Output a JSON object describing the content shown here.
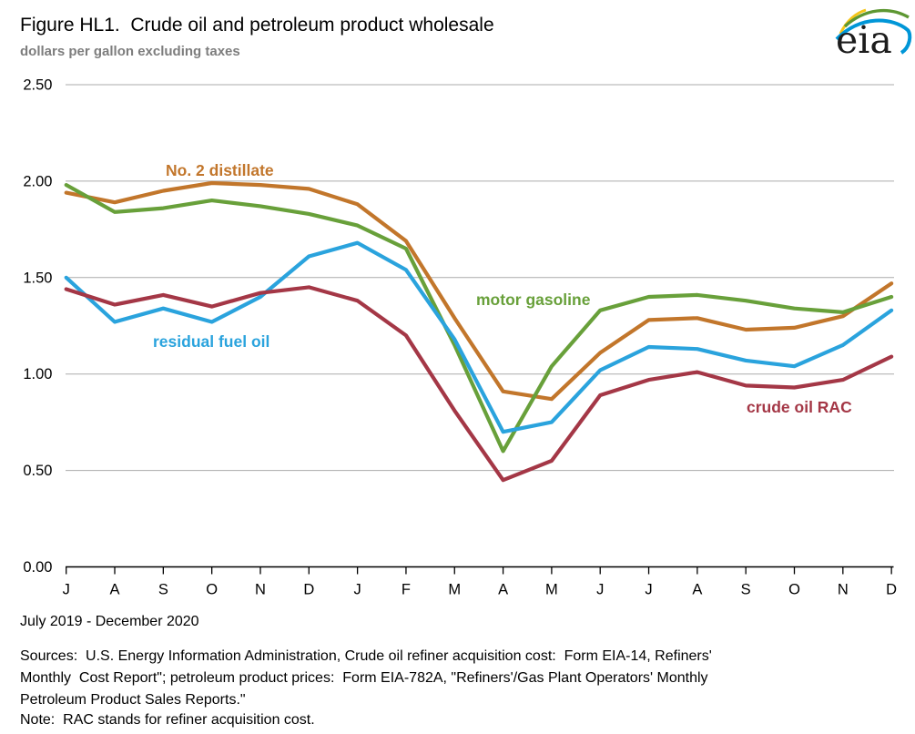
{
  "header": {
    "title": "Figure HL1.  Crude oil and petroleum product wholesale",
    "subtitle": "dollars per gallon excluding taxes",
    "logo_text": "eia"
  },
  "chart_data": {
    "type": "line",
    "title": "Figure HL1.  Crude oil and petroleum product wholesale",
    "ylabel": "dollars per gallon excluding taxes",
    "xlabel": "",
    "x_range_label": "July 2019 - December 2020",
    "categories": [
      "J",
      "A",
      "S",
      "O",
      "N",
      "D",
      "J",
      "F",
      "M",
      "A",
      "M",
      "J",
      "J",
      "A",
      "S",
      "O",
      "N",
      "D"
    ],
    "y_ticks": [
      "0.00",
      "0.50",
      "1.00",
      "1.50",
      "2.00",
      "2.50"
    ],
    "ylim": [
      0.0,
      2.5
    ],
    "grid": true,
    "legend_position": "inline-labels",
    "series": [
      {
        "name": "No. 2 distillate",
        "color": "#c2762b",
        "values": [
          1.94,
          1.89,
          1.95,
          1.99,
          1.98,
          1.96,
          1.88,
          1.69,
          1.29,
          0.91,
          0.87,
          1.11,
          1.28,
          1.29,
          1.23,
          1.24,
          1.3,
          1.47
        ]
      },
      {
        "name": "motor gasoline",
        "color": "#68a03a",
        "values": [
          1.98,
          1.84,
          1.86,
          1.9,
          1.87,
          1.83,
          1.77,
          1.65,
          1.15,
          0.6,
          1.04,
          1.33,
          1.4,
          1.41,
          1.38,
          1.34,
          1.32,
          1.4
        ]
      },
      {
        "name": "residual fuel oil",
        "color": "#2aa3dd",
        "values": [
          1.5,
          1.27,
          1.34,
          1.27,
          1.4,
          1.61,
          1.68,
          1.54,
          1.18,
          0.7,
          0.75,
          1.02,
          1.14,
          1.13,
          1.07,
          1.04,
          1.15,
          1.33
        ]
      },
      {
        "name": "crude oil RAC",
        "color": "#a43746",
        "values": [
          1.44,
          1.36,
          1.41,
          1.35,
          1.42,
          1.45,
          1.38,
          1.2,
          0.81,
          0.45,
          0.55,
          0.89,
          0.97,
          1.01,
          0.94,
          0.93,
          0.97,
          1.09
        ]
      }
    ]
  },
  "footer": {
    "period": "July 2019 - December 2020",
    "sources_lines": [
      "Sources:  U.S. Energy Information Administration, Crude oil refiner acquisition cost:  Form EIA-14, Refiners'",
      "Monthly  Cost Report\"; petroleum product prices:  Form EIA-782A, \"Refiners'/Gas Plant Operators' Monthly",
      "Petroleum Product Sales Reports.\""
    ],
    "note": "Note:  RAC stands for refiner acquisition cost."
  }
}
